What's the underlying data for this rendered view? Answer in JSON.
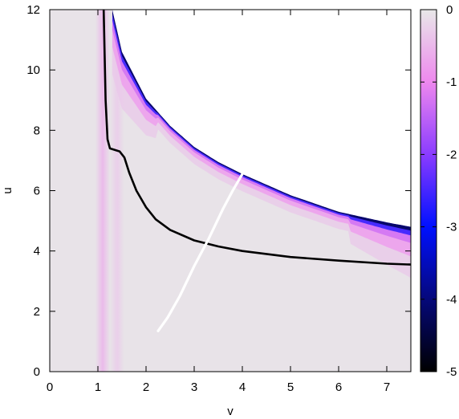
{
  "chart_data": {
    "type": "heatmap",
    "title": "",
    "xlabel": "v",
    "ylabel": "u",
    "xlim": [
      0,
      7.5
    ],
    "ylim": [
      0,
      12
    ],
    "x_ticks": [
      "0",
      "1",
      "2",
      "3",
      "4",
      "5",
      "6",
      "7"
    ],
    "y_ticks": [
      "0",
      "2",
      "4",
      "6",
      "8",
      "10",
      "12"
    ],
    "colorbar": {
      "range": [
        -5,
        0
      ],
      "ticks": [
        "0",
        "-1",
        "-2",
        "-3",
        "-4",
        "-5"
      ],
      "colors": {
        "0": "#e8e8e8",
        "-1": "#ee88ee",
        "-2": "#8a3cff",
        "-3": "#0010ff",
        "-4": "#05087a",
        "-5": "#000000"
      }
    },
    "field": {
      "background_value": -0.05,
      "vertical_bands": [
        {
          "v": 1.1,
          "value": -0.55
        },
        {
          "v": 1.4,
          "value": -0.3
        }
      ],
      "upper_boundary": [
        {
          "v": 1.3,
          "u": 12.0
        },
        {
          "v": 1.5,
          "u": 10.6
        },
        {
          "v": 2.0,
          "u": 9.05
        },
        {
          "v": 2.5,
          "u": 8.15
        },
        {
          "v": 3.0,
          "u": 7.45
        },
        {
          "v": 3.5,
          "u": 6.95
        },
        {
          "v": 4.0,
          "u": 6.55
        },
        {
          "v": 5.0,
          "u": 5.85
        },
        {
          "v": 6.0,
          "u": 5.3
        },
        {
          "v": 7.0,
          "u": 4.95
        },
        {
          "v": 7.5,
          "u": 4.8
        }
      ]
    },
    "series": [
      {
        "color": "#000000",
        "points": [
          [
            1.12,
            12.0
          ],
          [
            1.14,
            10.5
          ],
          [
            1.16,
            9.0
          ],
          [
            1.2,
            7.7
          ],
          [
            1.25,
            7.4
          ],
          [
            1.35,
            7.35
          ],
          [
            1.45,
            7.3
          ],
          [
            1.55,
            7.1
          ],
          [
            1.65,
            6.6
          ],
          [
            1.8,
            6.0
          ],
          [
            2.0,
            5.45
          ],
          [
            2.2,
            5.05
          ],
          [
            2.5,
            4.7
          ],
          [
            3.0,
            4.35
          ],
          [
            3.5,
            4.15
          ],
          [
            4.0,
            4.0
          ],
          [
            5.0,
            3.8
          ],
          [
            6.0,
            3.68
          ],
          [
            7.0,
            3.58
          ],
          [
            7.5,
            3.55
          ]
        ]
      },
      {
        "color": "#ffffff",
        "points": [
          [
            2.25,
            1.35
          ],
          [
            2.45,
            1.8
          ],
          [
            2.7,
            2.5
          ],
          [
            3.0,
            3.5
          ],
          [
            3.3,
            4.4
          ],
          [
            3.6,
            5.4
          ],
          [
            3.8,
            6.0
          ],
          [
            4.0,
            6.55
          ]
        ]
      }
    ]
  }
}
